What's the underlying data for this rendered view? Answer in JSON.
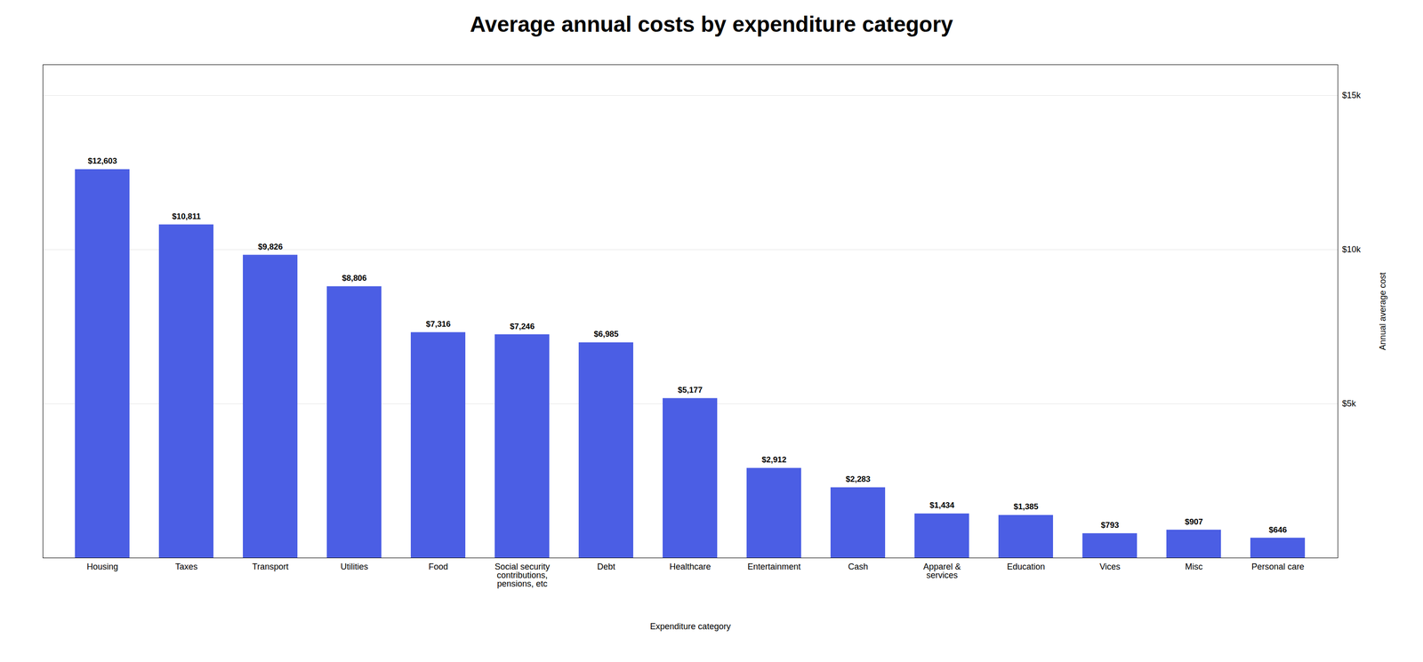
{
  "chart_data": {
    "type": "bar",
    "title": "Average annual costs by expenditure category",
    "xlabel": "Expenditure category",
    "ylabel": "Annual average cost",
    "categories": [
      "Housing",
      "Taxes",
      "Transport",
      "Utilities",
      "Food",
      "Social security\ncontributions,\npensions, etc",
      "Debt",
      "Healthcare",
      "Entertainment",
      "Cash",
      "Apparel &\nservices",
      "Education",
      "Vices",
      "Misc",
      "Personal care"
    ],
    "values": [
      12603,
      10811,
      9826,
      8806,
      7316,
      7246,
      6985,
      5177,
      2912,
      2283,
      1434,
      1385,
      793,
      907,
      646
    ],
    "value_labels": [
      "$12,603",
      "$10,811",
      "$9,826",
      "$8,806",
      "$7,316",
      "$7,246",
      "$6,985",
      "$5,177",
      "$2,912",
      "$2,283",
      "$1,434",
      "$1,385",
      "$793",
      "$907",
      "$646"
    ],
    "color": "#4B5EE4",
    "ylim": [
      0,
      16000
    ],
    "yticks": [
      {
        "value": 5000,
        "label": "$5k"
      },
      {
        "value": 10000,
        "label": "$10k"
      },
      {
        "value": 15000,
        "label": "$15k"
      }
    ],
    "grid": true,
    "data_labels": true
  }
}
